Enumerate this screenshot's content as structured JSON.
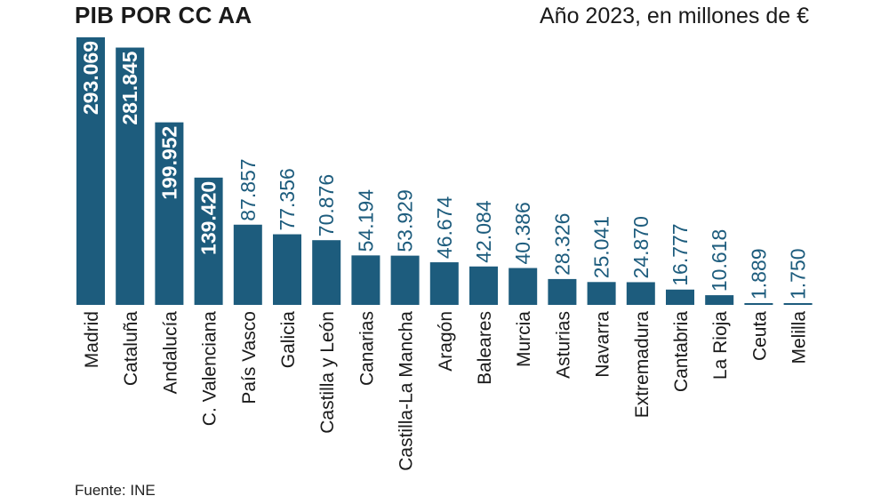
{
  "chart_data": {
    "type": "bar",
    "title": "PIB POR CC AA",
    "subtitle": "Año 2023, en millones de €",
    "source": "Fuente: INE",
    "categories": [
      "Madrid",
      "Cataluña",
      "Andalucía",
      "C. Valenciana",
      "País Vasco",
      "Galicia",
      "Castilla y León",
      "Canarias",
      "Castilla-La Mancha",
      "Aragón",
      "Baleares",
      "Murcia",
      "Asturias",
      "Navarra",
      "Extremadura",
      "Cantabria",
      "La Rioja",
      "Ceuta",
      "Melilla"
    ],
    "value_labels": [
      "293.069",
      "281.845",
      "199.952",
      "139.420",
      "87.857",
      "77.356",
      "70.876",
      "54.194",
      "53.929",
      "46.674",
      "42.084",
      "40.386",
      "28.326",
      "25.041",
      "24.870",
      "16.777",
      "10.618",
      "1.889",
      "1.750"
    ],
    "values": [
      293069,
      281845,
      199952,
      139420,
      87857,
      77356,
      70876,
      54194,
      53929,
      46674,
      42084,
      40386,
      28326,
      25041,
      24870,
      16777,
      10618,
      1889,
      1750
    ],
    "ylim": [
      0,
      293069
    ],
    "grid": false,
    "legend": "none",
    "colors": {
      "bar": "#1d5c7d",
      "label_inside": "#ffffff",
      "label_outside": "#1d5c7d",
      "text": "#1a1a1a"
    }
  }
}
